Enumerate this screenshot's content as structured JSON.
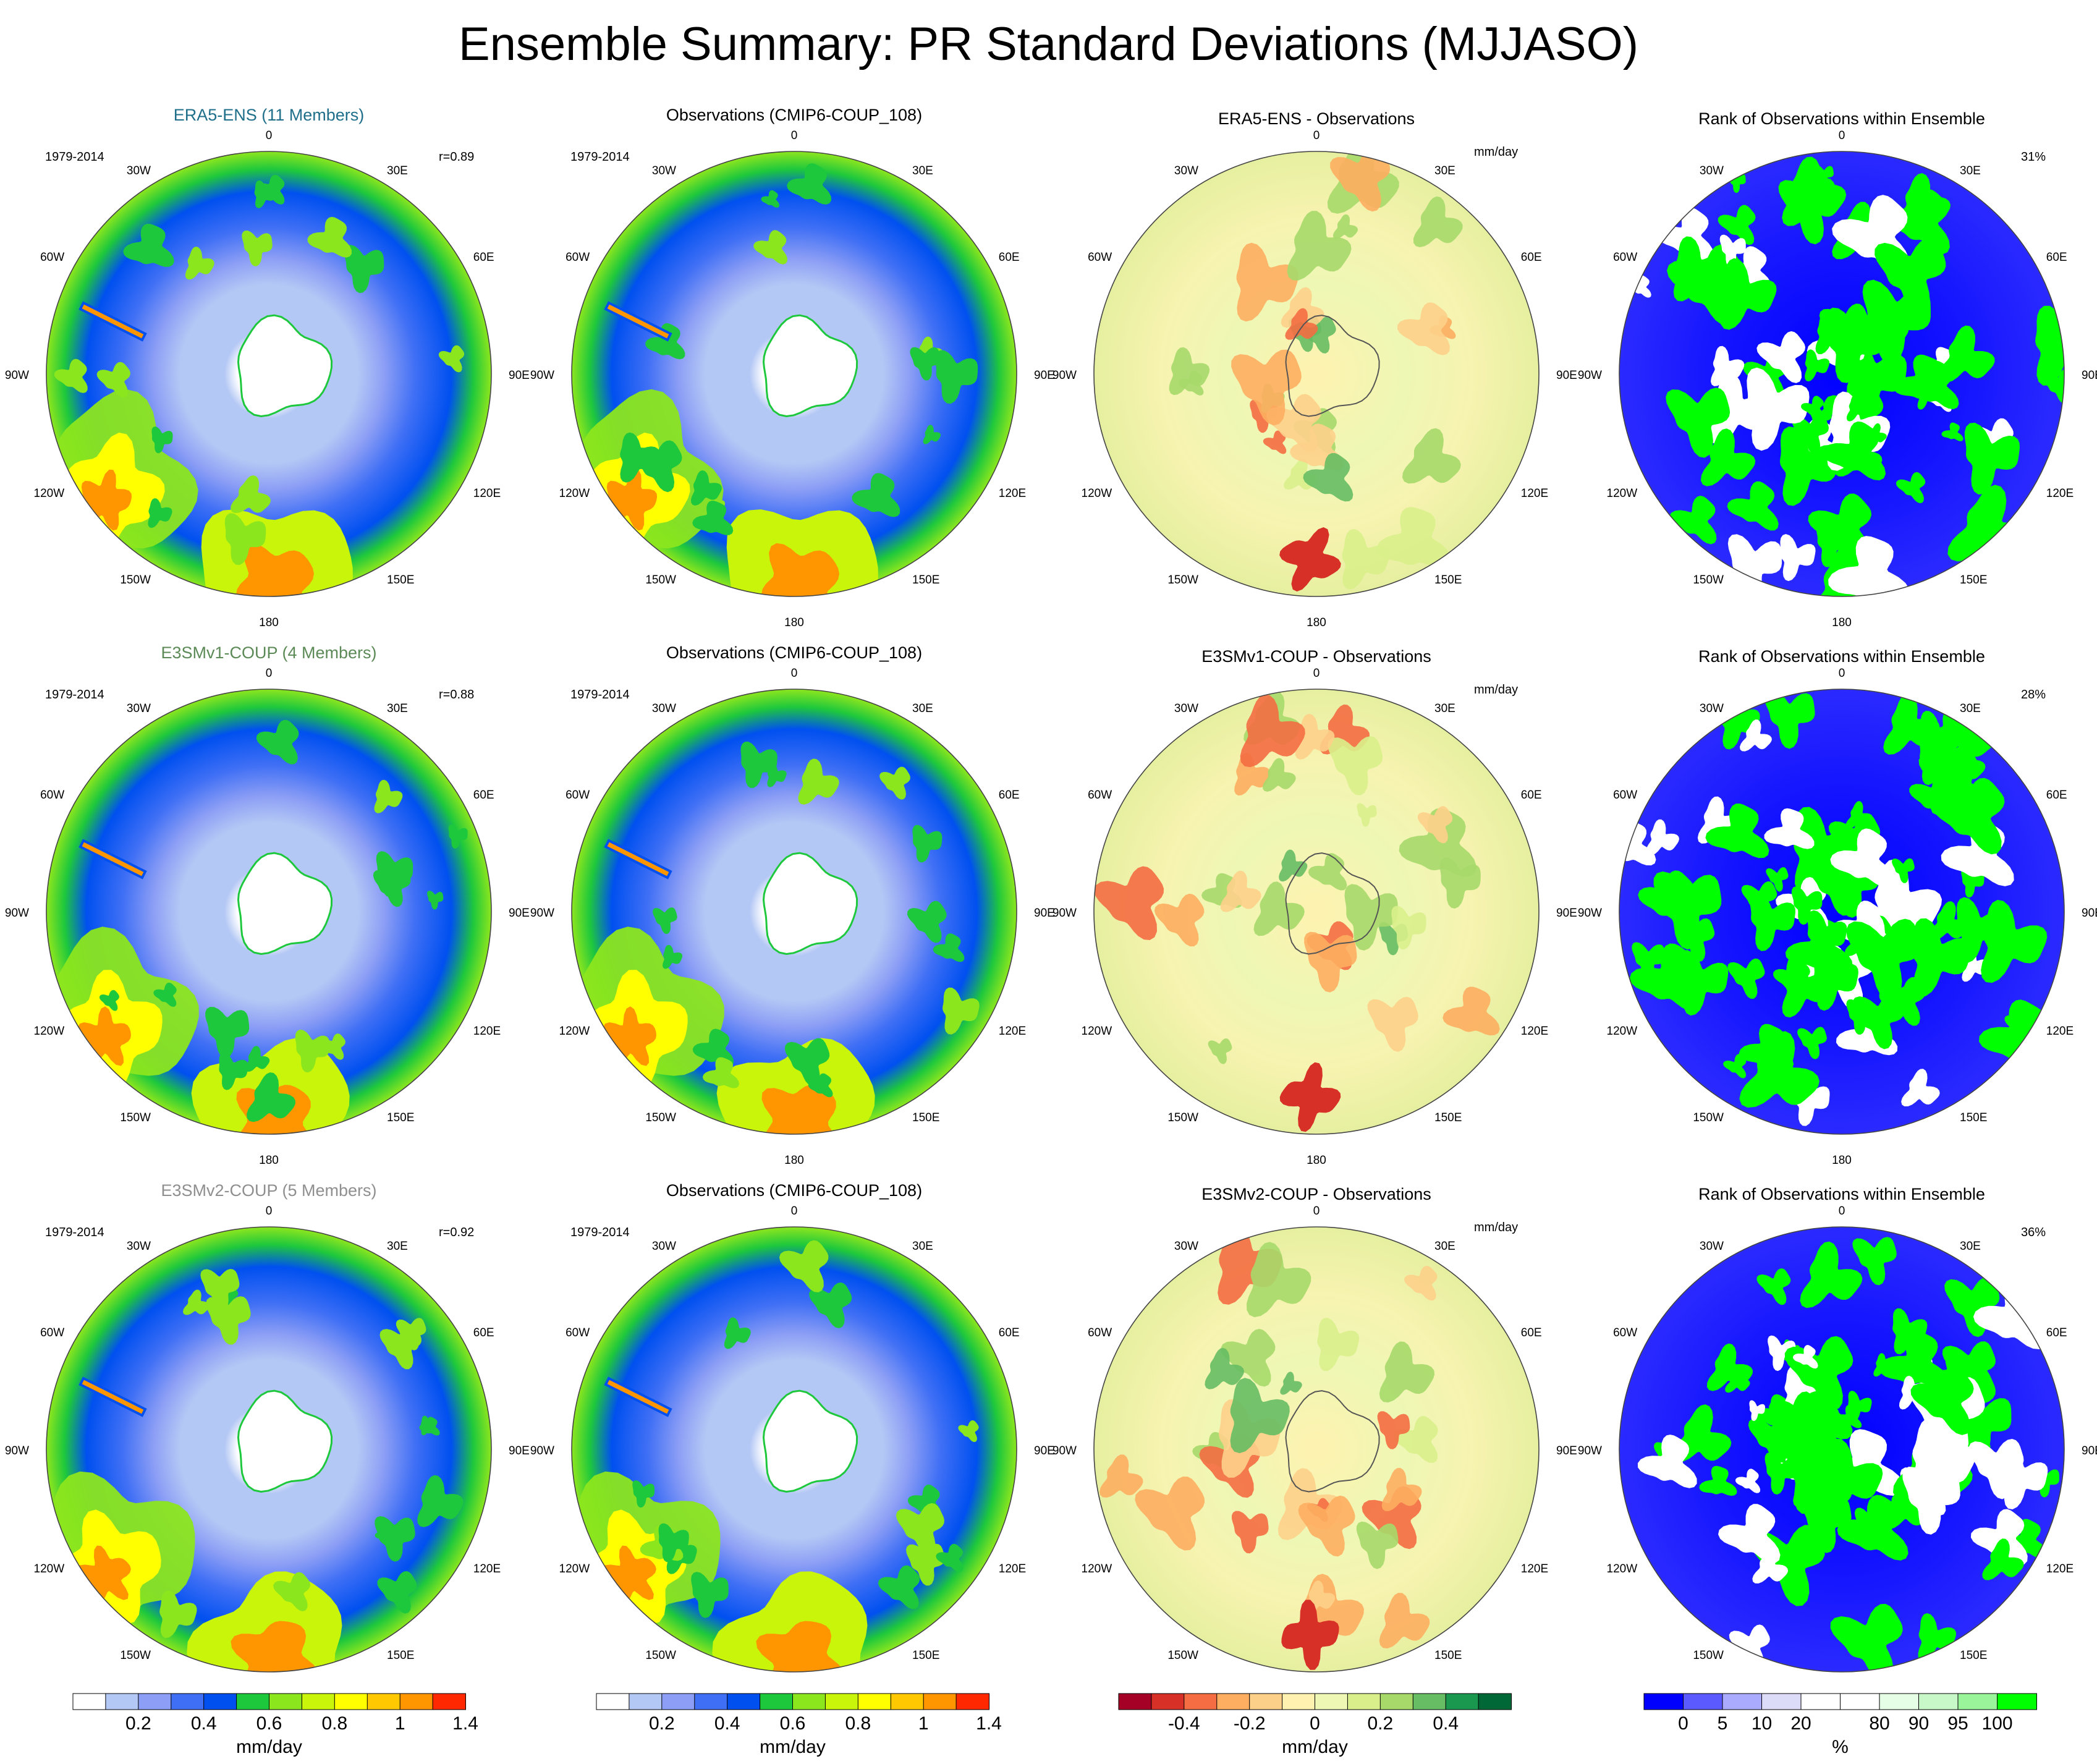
{
  "title": "Ensemble Summary: PR Standard Deviations (MJJASO)",
  "colors": {
    "ens_title_0": "#1f6f8b",
    "ens_title_1": "#5c8a57",
    "ens_title_2": "#8f8f8f",
    "map_outline": "#444444"
  },
  "longitude_labels": {
    "top": "0",
    "bottom": "180",
    "w30": "30W",
    "e30": "30E",
    "w60": "60W",
    "e60": "60E",
    "w90": "90W",
    "e90": "90E",
    "w120": "120W",
    "e120": "120E",
    "w150": "150W",
    "e150": "150E"
  },
  "rows": [
    {
      "ensemble_title": "ERA5-ENS (11 Members)",
      "period": "1979-2014",
      "correlation": "r=0.89",
      "obs_title": "Observations (CMIP6-COUP_108)",
      "obs_period": "1979-2014",
      "diff_title": "ERA5-ENS - Observations",
      "diff_unit": "mm/day",
      "rank_title": "Rank of Observations within Ensemble",
      "rank_percent": "31%"
    },
    {
      "ensemble_title": "E3SMv1-COUP (4 Members)",
      "period": "1979-2014",
      "correlation": "r=0.88",
      "obs_title": "Observations (CMIP6-COUP_108)",
      "obs_period": "1979-2014",
      "diff_title": "E3SMv1-COUP - Observations",
      "diff_unit": "mm/day",
      "rank_title": "Rank of Observations within Ensemble",
      "rank_percent": "28%"
    },
    {
      "ensemble_title": "E3SMv2-COUP (5 Members)",
      "period": "1979-2014",
      "correlation": "r=0.92",
      "obs_title": "Observations (CMIP6-COUP_108)",
      "obs_period": "1979-2014",
      "diff_title": "E3SMv2-COUP - Observations",
      "diff_unit": "mm/day",
      "rank_title": "Rank of Observations within Ensemble",
      "rank_percent": "36%"
    }
  ],
  "chart_data": [
    {
      "type": "heatmap",
      "role": "colorbar-stddev",
      "unit_label": "mm/day",
      "colors": [
        "#ffffff",
        "#b4c8f5",
        "#8c9ef5",
        "#3f6ff5",
        "#0050f0",
        "#1ec83c",
        "#8ce61e",
        "#c8f50a",
        "#ffff00",
        "#ffc800",
        "#ff9600",
        "#ff2800"
      ],
      "tick_labels": [
        "0.2",
        "0.4",
        "0.6",
        "0.8",
        "1",
        "1.4"
      ],
      "tick_positions": [
        2,
        4,
        6,
        8,
        10,
        12
      ]
    },
    {
      "type": "heatmap",
      "role": "colorbar-stddev",
      "unit_label": "mm/day",
      "colors": [
        "#ffffff",
        "#b4c8f5",
        "#8c9ef5",
        "#3f6ff5",
        "#0050f0",
        "#1ec83c",
        "#8ce61e",
        "#c8f50a",
        "#ffff00",
        "#ffc800",
        "#ff9600",
        "#ff2800"
      ],
      "tick_labels": [
        "0.2",
        "0.4",
        "0.6",
        "0.8",
        "1",
        "1.4"
      ],
      "tick_positions": [
        2,
        4,
        6,
        8,
        10,
        12
      ]
    },
    {
      "type": "heatmap",
      "role": "colorbar-difference",
      "unit_label": "mm/day",
      "colors": [
        "#a50026",
        "#d73027",
        "#f46d43",
        "#fdae61",
        "#fdd08a",
        "#fff2b0",
        "#eef7b4",
        "#d9ef8b",
        "#a6d96a",
        "#66bd63",
        "#1a9850",
        "#006837"
      ],
      "tick_labels": [
        "-0.4",
        "-0.2",
        "0",
        "0.2",
        "0.4"
      ],
      "tick_positions": [
        2,
        4,
        6,
        8,
        10
      ]
    },
    {
      "type": "heatmap",
      "role": "colorbar-rank",
      "unit_label": "%",
      "colors": [
        "#0000ff",
        "#5a5aff",
        "#aaaaff",
        "#dcdcf8",
        "#ffffff",
        "#ffffff",
        "#e6fde6",
        "#c8f8c8",
        "#9af59a",
        "#00ff00"
      ],
      "tick_labels": [
        "0",
        "5",
        "10",
        "20",
        "80",
        "90",
        "95",
        "100"
      ],
      "tick_positions": [
        1,
        2,
        3,
        4,
        6,
        7,
        8,
        9
      ]
    }
  ]
}
